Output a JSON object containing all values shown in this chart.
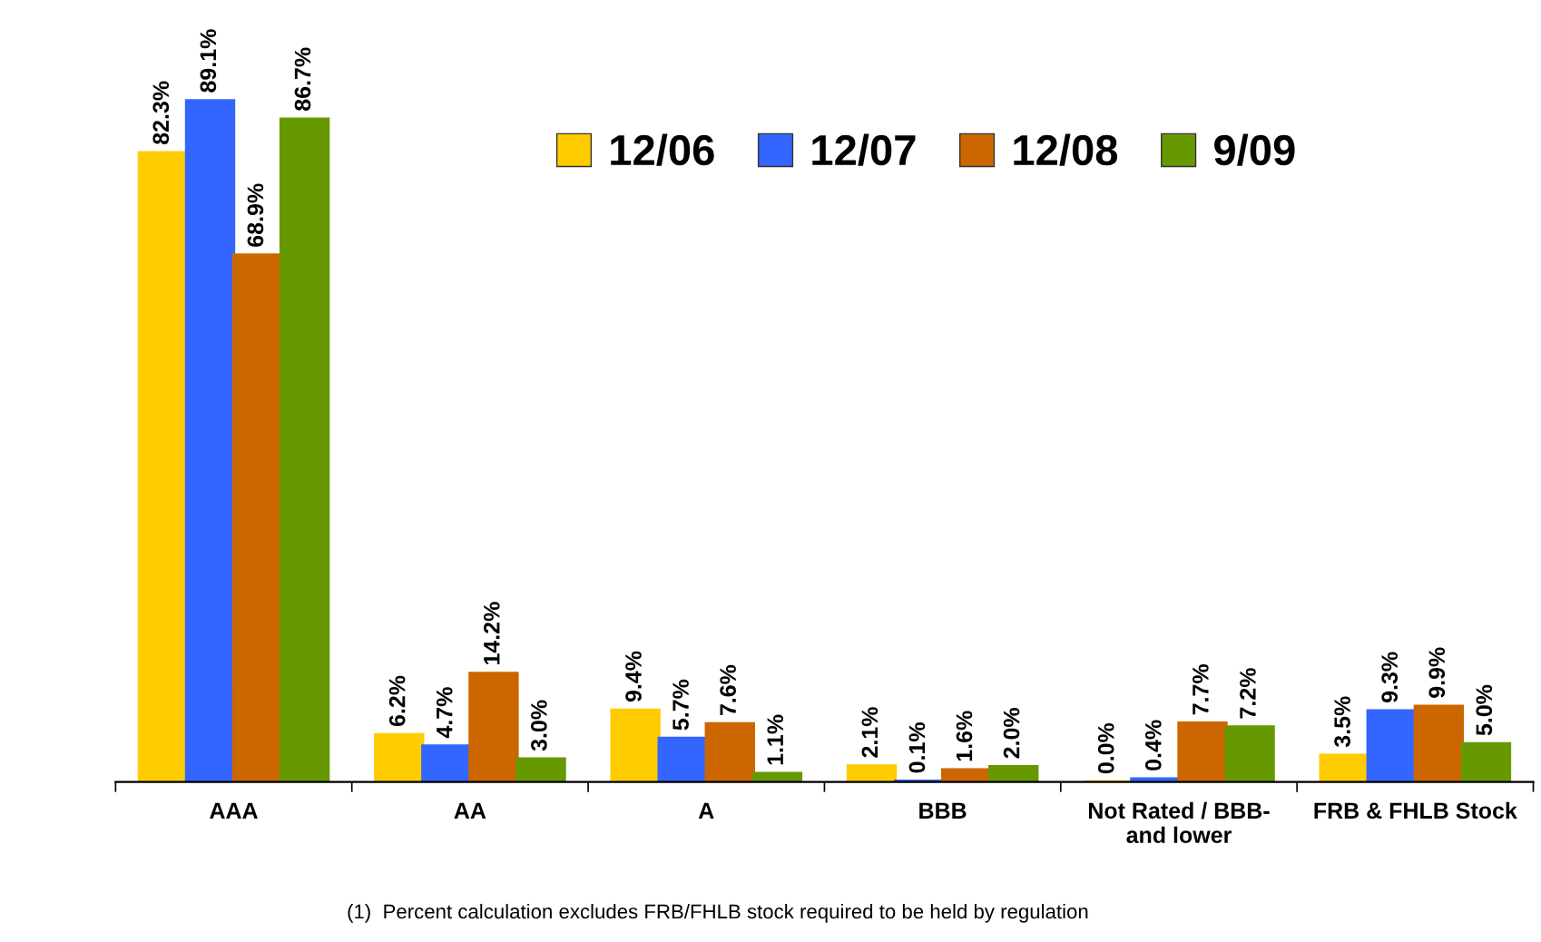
{
  "chart_data": {
    "type": "bar",
    "categories": [
      "AAA",
      "AA",
      "A",
      "BBB",
      "Not Rated / BBB-\nand lower",
      "FRB & FHLB Stock"
    ],
    "series": [
      {
        "name": "12/06",
        "color": "#ffcc00",
        "values": [
          82.3,
          6.2,
          9.4,
          2.1,
          0.0,
          3.5
        ],
        "value_labels": [
          "82.3%",
          "6.2%",
          "9.4%",
          "2.1%",
          "0.0%",
          "3.5%"
        ]
      },
      {
        "name": "12/07",
        "color": "#3366ff",
        "values": [
          89.1,
          4.7,
          5.7,
          0.1,
          0.4,
          9.3
        ],
        "value_labels": [
          "89.1%",
          "4.7%",
          "5.7%",
          "0.1%",
          "0.4%",
          "9.3%"
        ]
      },
      {
        "name": "12/08",
        "color": "#cc6600",
        "values": [
          68.9,
          14.2,
          7.6,
          1.6,
          7.7,
          9.9
        ],
        "value_labels": [
          "68.9%",
          "14.2%",
          "7.6%",
          "1.6%",
          "7.7%",
          "9.9%"
        ]
      },
      {
        "name": "9/09",
        "color": "#669900",
        "values": [
          86.7,
          3.0,
          1.1,
          2.0,
          7.2,
          5.0
        ],
        "value_labels": [
          "86.7%",
          "3.0%",
          "1.1%",
          "2.0%",
          "7.2%",
          "5.0%"
        ]
      }
    ],
    "legend": "top right",
    "grid": false,
    "annotations": [
      "(1)  Percent calculation excludes FRB/FHLB stock required to be held by regulation"
    ]
  }
}
